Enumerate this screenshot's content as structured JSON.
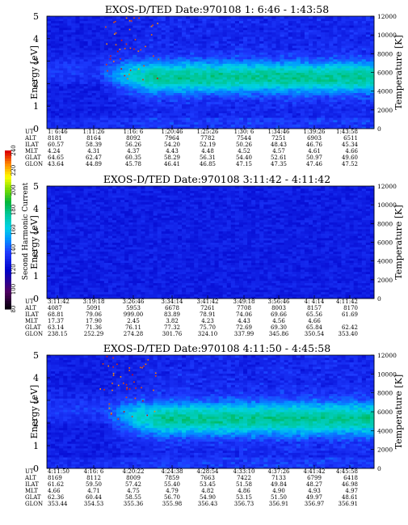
{
  "colorbar": {
    "label": "Second Harmonic Current",
    "ticks": [
      "80",
      "100",
      "120",
      "140",
      "160",
      "180",
      "200",
      "220",
      "240"
    ],
    "range": [
      80,
      240
    ]
  },
  "chart_data": [
    {
      "type": "heatmap",
      "title": "EXOS-D/TED   Date:970108   1: 6:46 - 1:43:58",
      "ylabel": "Energy [eV]",
      "y2label": "Temperature [K]",
      "ylim": [
        0,
        5
      ],
      "yticks": [
        "0",
        "1",
        "2",
        "3",
        "4",
        "5"
      ],
      "y2lim": [
        0,
        12000
      ],
      "y2ticks": [
        "0",
        "2000",
        "4000",
        "6000",
        "8000",
        "10000",
        "12000"
      ],
      "band": {
        "center_eV": 2.3,
        "width_eV": 0.85,
        "start_fraction": 0.28
      },
      "row_labels": [
        "UT",
        "ALT",
        "ILAT",
        "MLT",
        "GLAT",
        "GLON"
      ],
      "columns": [
        [
          "1: 6:46",
          "8181",
          "60.57",
          "4.24",
          "64.65",
          "43.64"
        ],
        [
          "1:11:26",
          "8164",
          "58.39",
          "4.31",
          "62.47",
          "44.89"
        ],
        [
          "1:16: 6",
          "8092",
          "56.26",
          "4.37",
          "60.35",
          "45.78"
        ],
        [
          "1:20:46",
          "7964",
          "54.20",
          "4.43",
          "58.29",
          "46.41"
        ],
        [
          "1:25:26",
          "7782",
          "52.19",
          "4.48",
          "56.31",
          "46.85"
        ],
        [
          "1:30: 6",
          "7544",
          "50.26",
          "4.52",
          "54.40",
          "47.15"
        ],
        [
          "1:34:46",
          "7251",
          "48.43",
          "4.57",
          "52.61",
          "47.35"
        ],
        [
          "1:39:26",
          "6903",
          "46.76",
          "4.61",
          "50.97",
          "47.46"
        ],
        [
          "1:43:58",
          "6511",
          "45.34",
          "4.66",
          "49.60",
          "47.52"
        ]
      ]
    },
    {
      "type": "heatmap",
      "title": "EXOS-D/TED   Date:970108   3:11:42 - 4:11:42",
      "ylabel": "Energy [eV]",
      "y2label": "Temperature [K]",
      "ylim": [
        0,
        5
      ],
      "yticks": [
        "0",
        "1",
        "2",
        "3",
        "4",
        "5"
      ],
      "y2lim": [
        0,
        12000
      ],
      "y2ticks": [
        "0",
        "2000",
        "4000",
        "6000",
        "8000",
        "10000",
        "12000"
      ],
      "band": null,
      "row_labels": [
        "UT",
        "ALT",
        "ILAT",
        "MLT",
        "GLAT",
        "GLON"
      ],
      "columns": [
        [
          "3:11:42",
          "4087",
          "68.81",
          "17.37",
          "63.14",
          "238.15"
        ],
        [
          "3:19:18",
          "5091",
          "79.06",
          "17.90",
          "71.36",
          "252.29"
        ],
        [
          "3:26:46",
          "5953",
          "999.00",
          "2.45",
          "76.11",
          "274.28"
        ],
        [
          "3:34:14",
          "6678",
          "83.89",
          "3.82",
          "77.32",
          "301.76"
        ],
        [
          "3:41:42",
          "7261",
          "78.91",
          "4.23",
          "75.70",
          "324.10"
        ],
        [
          "3:49:18",
          "7708",
          "74.06",
          "4.43",
          "72.69",
          "337.99"
        ],
        [
          "3:56:46",
          "8003",
          "69.66",
          "4.56",
          "69.30",
          "345.86"
        ],
        [
          "4: 4:14",
          "8157",
          "65.56",
          "4.66",
          "65.84",
          "350.54"
        ],
        [
          "4:11:42",
          "8170",
          "61.69",
          "",
          "62.42",
          "353.40"
        ]
      ]
    },
    {
      "type": "heatmap",
      "title": "EXOS-D/TED   Date:970108   4:11:50 - 4:45:58",
      "ylabel": "Energy [eV]",
      "y2label": "Temperature [K]",
      "ylim": [
        0,
        5
      ],
      "yticks": [
        "0",
        "1",
        "2",
        "3",
        "4",
        "5"
      ],
      "y2lim": [
        0,
        12000
      ],
      "y2ticks": [
        "0",
        "2000",
        "4000",
        "6000",
        "8000",
        "10000",
        "12000"
      ],
      "band": {
        "center_eV": 2.2,
        "width_eV": 0.9,
        "start_fraction": 0.3
      },
      "row_labels": [
        "UT",
        "ALT",
        "ILAT",
        "MLT",
        "GLAT",
        "GLON"
      ],
      "columns": [
        [
          "4:11:50",
          "8169",
          "61.62",
          "4.66",
          "62.36",
          "353.44"
        ],
        [
          "4:16: 6",
          "8112",
          "59.50",
          "4.71",
          "60.44",
          "354.53"
        ],
        [
          "4:20:22",
          "8009",
          "57.42",
          "4.75",
          "58.55",
          "355.36"
        ],
        [
          "4:24:38",
          "7859",
          "55.40",
          "4.79",
          "56.70",
          "355.98"
        ],
        [
          "4:28:54",
          "7663",
          "53.45",
          "4.82",
          "54.90",
          "356.43"
        ],
        [
          "4:33:10",
          "7422",
          "51.58",
          "4.86",
          "53.15",
          "356.73"
        ],
        [
          "4:37:26",
          "7133",
          "49.84",
          "4.90",
          "51.50",
          "356.91"
        ],
        [
          "4:41:42",
          "6799",
          "48.27",
          "4.93",
          "49.97",
          "356.97"
        ],
        [
          "4:45:58",
          "6418",
          "46.98",
          "4.97",
          "48.61",
          "356.91"
        ]
      ]
    }
  ]
}
